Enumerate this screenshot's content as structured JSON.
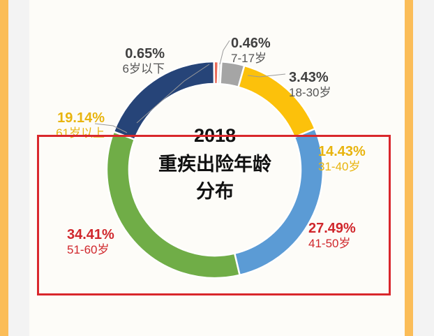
{
  "chart_data": {
    "type": "pie",
    "title_lines": [
      "2018",
      "重疾出险年龄",
      "分布"
    ],
    "slices": [
      {
        "label": "6岁以下",
        "value": 0.65,
        "pct_text": "0.65%",
        "color": "#ea6b5a",
        "label_color": "#555555"
      },
      {
        "label": "7-17岁",
        "value": 0.46,
        "pct_text": "0.46%",
        "color": "#e2e2e2",
        "label_color": "#555555"
      },
      {
        "label": "18-30岁",
        "value": 3.43,
        "pct_text": "3.43%",
        "color": "#a5a5a5",
        "label_color": "#555555"
      },
      {
        "label": "31-40岁",
        "value": 14.43,
        "pct_text": "14.43%",
        "color": "#fcc10b",
        "label_color": "#e8b40e"
      },
      {
        "label": "41-50岁",
        "value": 27.49,
        "pct_text": "27.49%",
        "color": "#5b9bd5",
        "label_color": "#d0272c"
      },
      {
        "label": "51-60岁",
        "value": 34.41,
        "pct_text": "34.41%",
        "color": "#70ad47",
        "label_color": "#d0272c"
      },
      {
        "label": "61岁以上",
        "value": 19.14,
        "pct_text": "19.14%",
        "color": "#264478",
        "label_color": "#e8b40e"
      }
    ]
  }
}
